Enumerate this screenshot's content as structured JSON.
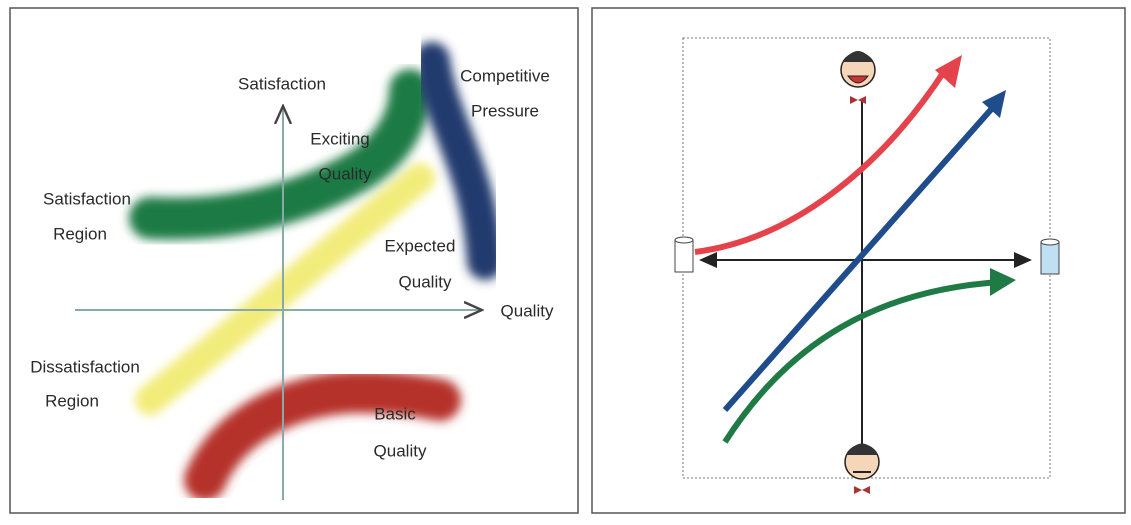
{
  "left_panel": {
    "axis_y_label": "Satisfaction",
    "axis_x_label": "Quality",
    "competitive_pressure": [
      "Competitive",
      "Pressure"
    ],
    "exciting_quality": [
      "Exciting",
      "Quality"
    ],
    "satisfaction_region": [
      "Satisfaction",
      "Region"
    ],
    "expected_quality": [
      "Expected",
      "Quality"
    ],
    "dissatisfaction_region": [
      "Dissatisfaction",
      "Region"
    ],
    "basic_quality": [
      "Basic",
      "Quality"
    ]
  }
}
